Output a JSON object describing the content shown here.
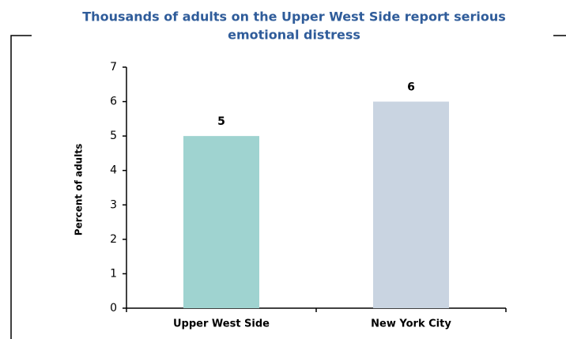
{
  "chart_data": {
    "type": "bar",
    "title": [
      "Thousands of adults on the Upper West Side report serious",
      "emotional distress"
    ],
    "y_label": "Percent of adults",
    "categories": [
      "Upper West Side",
      "New York City"
    ],
    "values": [
      5,
      6
    ],
    "colors": [
      "#9fd3d0",
      "#c9d4e1"
    ],
    "ylim": [
      0,
      7
    ],
    "yticks": [
      0,
      1,
      2,
      3,
      4,
      5,
      6,
      7
    ],
    "grid": false
  }
}
